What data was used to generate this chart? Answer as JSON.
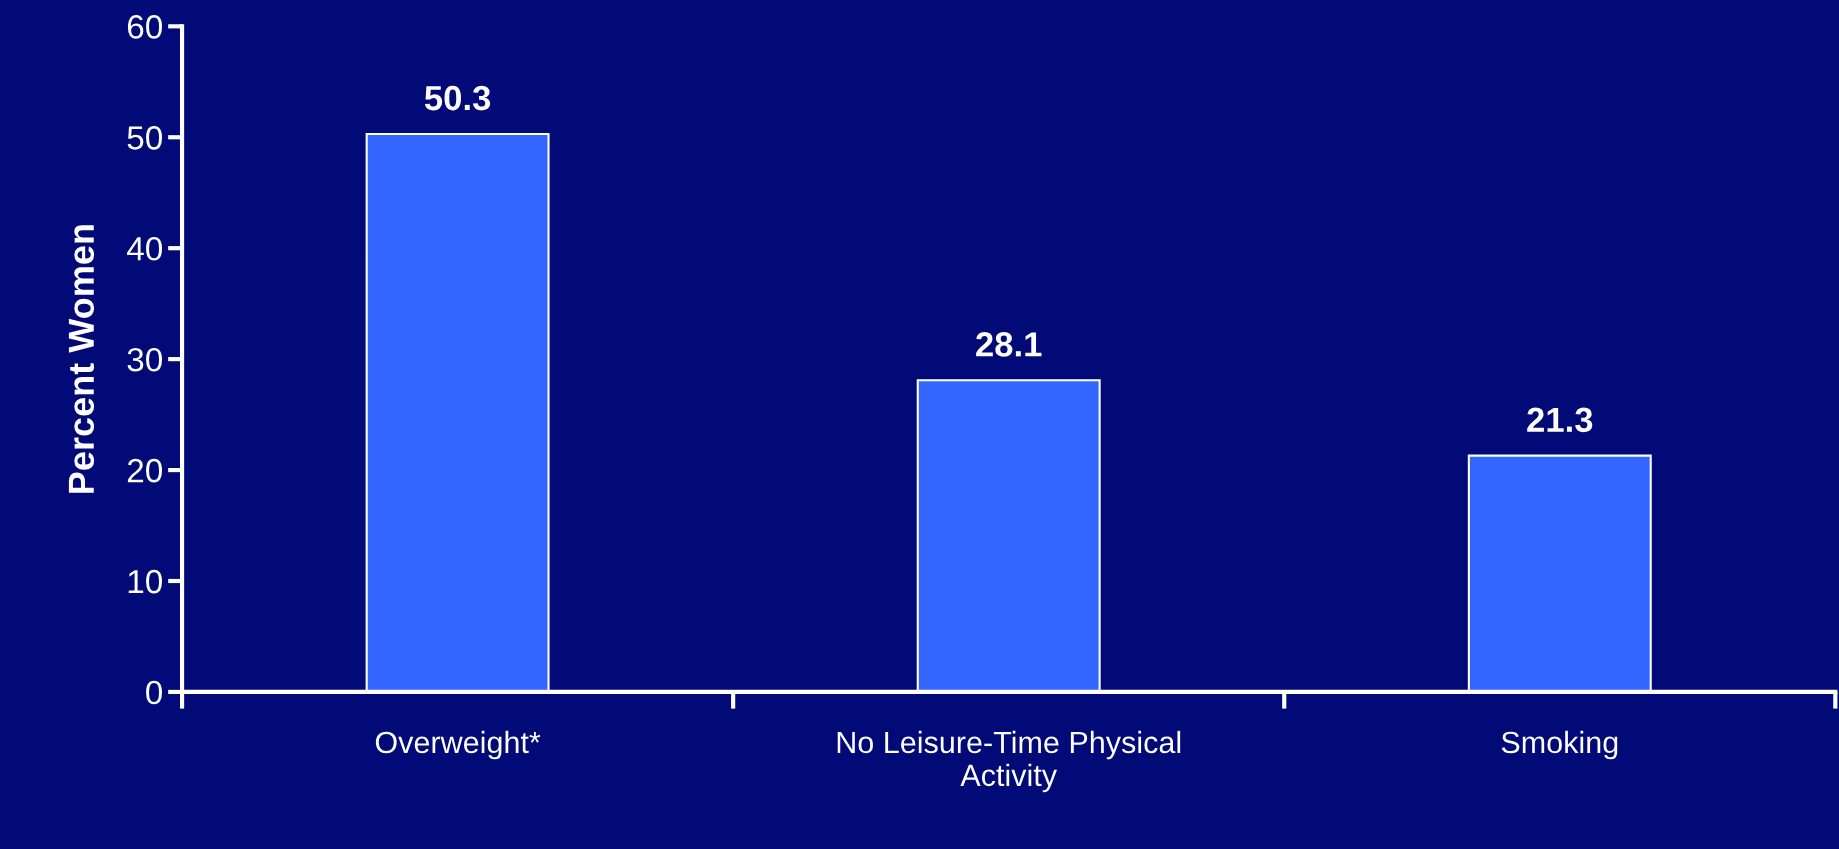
{
  "chart_data": {
    "type": "bar",
    "ylabel": "Percent Women",
    "categories": [
      "Overweight*",
      "No Leisure-Time Physical\nActivity",
      "Smoking"
    ],
    "values": [
      50.3,
      28.1,
      21.3
    ],
    "color": "#3366ff",
    "ylim": [
      0,
      60
    ],
    "yticks": [
      0,
      10,
      20,
      30,
      40,
      50,
      60
    ],
    "grid": false,
    "data_labels": true
  }
}
